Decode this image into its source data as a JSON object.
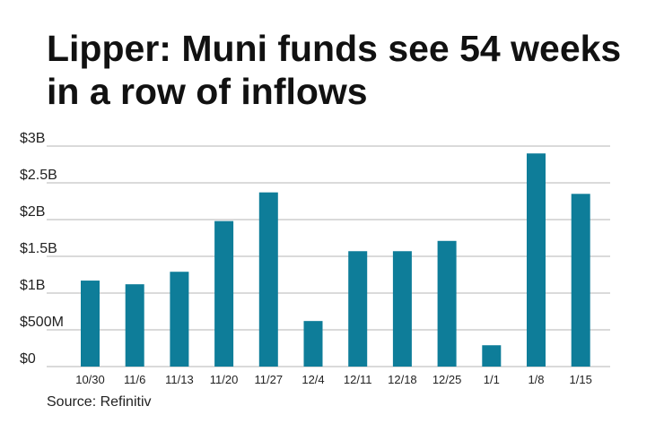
{
  "title": "Lipper: Muni funds see 54 weeks in a row of inflows",
  "source": "Source: Refinitiv",
  "chart_data": {
    "type": "bar",
    "title": "Lipper: Muni funds see 54 weeks in a row of inflows",
    "xlabel": "",
    "ylabel": "",
    "categories": [
      "10/30",
      "11/6",
      "11/13",
      "11/20",
      "11/27",
      "12/4",
      "12/11",
      "12/18",
      "12/25",
      "1/1",
      "1/8",
      "1/15"
    ],
    "values": [
      1.17,
      1.12,
      1.29,
      1.98,
      2.37,
      0.62,
      1.57,
      1.57,
      1.71,
      0.29,
      2.9,
      2.35
    ],
    "unit": "USD billions",
    "ylim": [
      0,
      3
    ],
    "yticks": [
      {
        "value": 0,
        "label": "$0"
      },
      {
        "value": 0.5,
        "label": "$500M"
      },
      {
        "value": 1,
        "label": "$1B"
      },
      {
        "value": 1.5,
        "label": "$1.5B"
      },
      {
        "value": 2,
        "label": "$2B"
      },
      {
        "value": 2.5,
        "label": "$2.5B"
      },
      {
        "value": 3,
        "label": "$3B"
      }
    ],
    "grid": true,
    "bar_color": "#0e7d99",
    "grid_color": "#b5b5b5"
  }
}
